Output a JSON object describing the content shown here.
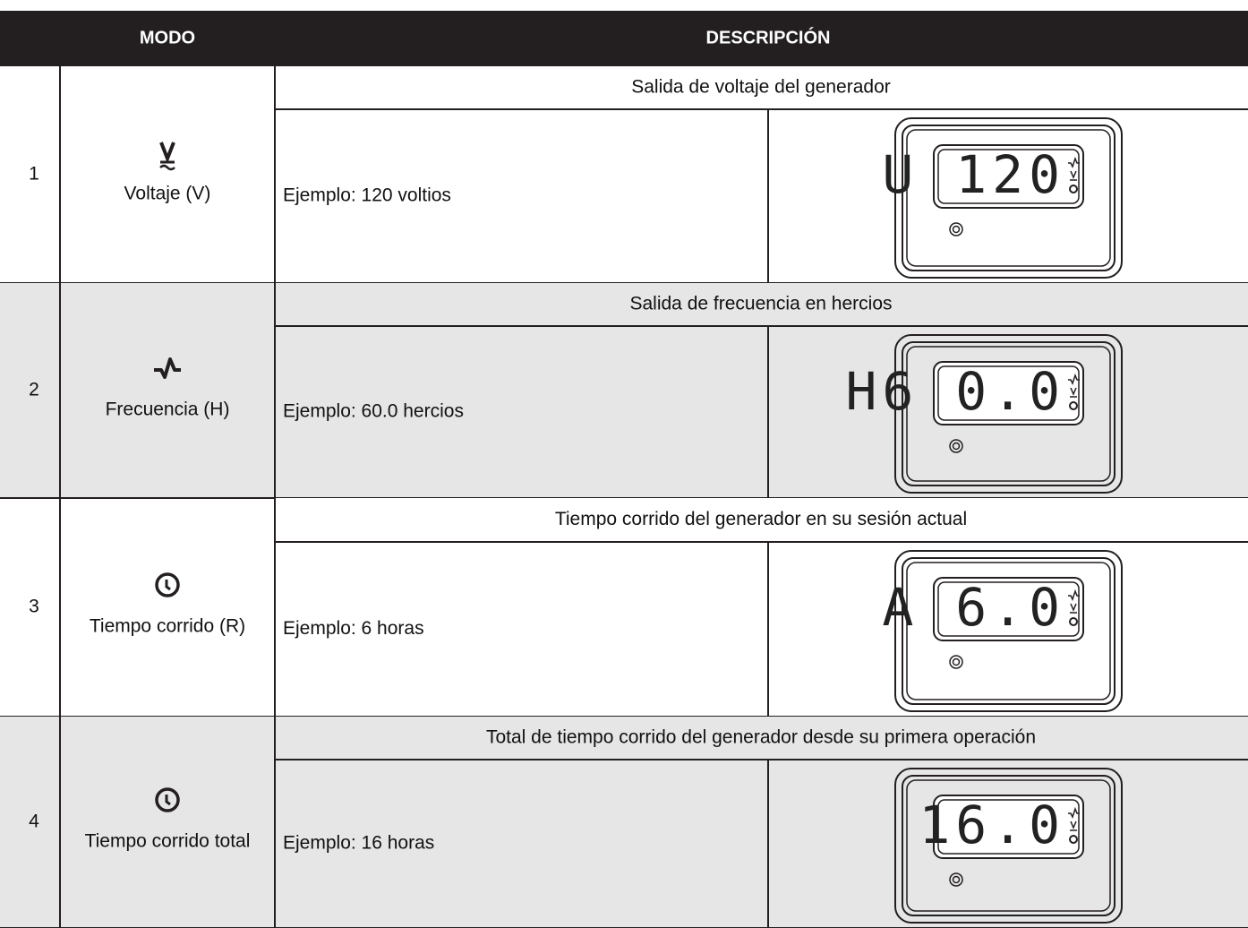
{
  "table": {
    "header": [
      "MODO",
      "DESCRIPCIÓN"
    ],
    "rows": [
      {
        "number": "1",
        "mode": "Voltaje (V)",
        "description": "Salida de voltaje del generador",
        "example": "Ejemplo: 120 voltios",
        "display": "U 120"
      },
      {
        "number": "2",
        "mode": "Frecuencia (H)",
        "description": "Salida de frecuencia en hercios",
        "example": "Ejemplo: 60.0 hercios",
        "display": "H6 0.0"
      },
      {
        "number": "3",
        "mode": "Tiempo corrido (R)",
        "description": "Tiempo corrido del generador en su sesión actual",
        "example": "Ejemplo: 6 horas",
        "display": "A 6.0"
      },
      {
        "number": "4",
        "mode": "Tiempo corrido total",
        "description": "Total de tiempo corrido del generador desde su primera operación",
        "example": "Ejemplo: 16 horas",
        "display": "16.0"
      }
    ]
  }
}
